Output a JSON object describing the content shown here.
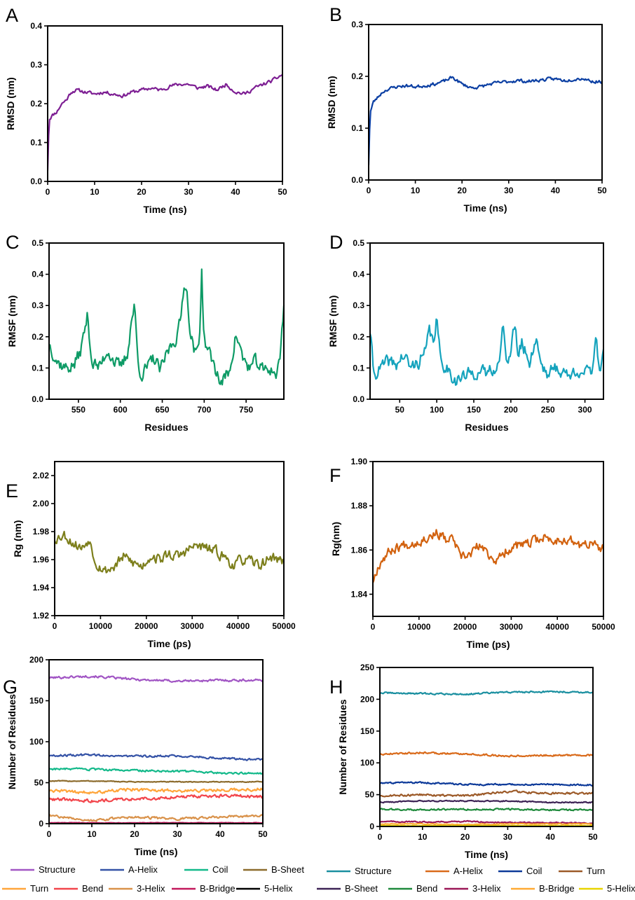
{
  "chart_data": [
    {
      "id": "A",
      "type": "line",
      "panel_label": "A",
      "xlabel": "Time (ns)",
      "ylabel": "RMSD (nm)",
      "xlim": [
        0,
        50
      ],
      "ylim": [
        0,
        0.4
      ],
      "xticks": [
        0,
        10,
        20,
        30,
        40,
        50
      ],
      "yticks": [
        0.0,
        0.1,
        0.2,
        0.3,
        0.4
      ],
      "ytick_labels": [
        "0.0",
        "0.1",
        "0.2",
        "0.3",
        "0.4"
      ],
      "series": [
        {
          "name": "RMSD",
          "color": "#7d1e93",
          "noise": 0.007,
          "seed": 11,
          "x": [
            0,
            0.3,
            1,
            2,
            3,
            4,
            5,
            6,
            8,
            10,
            12,
            14,
            16,
            18,
            20,
            22,
            24,
            26,
            28,
            30,
            32,
            34,
            36,
            38,
            40,
            42,
            44,
            46,
            48,
            50
          ],
          "y": [
            0.03,
            0.16,
            0.17,
            0.18,
            0.2,
            0.21,
            0.23,
            0.235,
            0.23,
            0.225,
            0.23,
            0.225,
            0.22,
            0.23,
            0.235,
            0.24,
            0.235,
            0.245,
            0.25,
            0.25,
            0.24,
            0.245,
            0.235,
            0.25,
            0.23,
            0.225,
            0.24,
            0.25,
            0.26,
            0.275
          ]
        }
      ]
    },
    {
      "id": "B",
      "type": "line",
      "panel_label": "B",
      "xlabel": "Time (ns)",
      "ylabel": "RMSD (nm)",
      "xlim": [
        0,
        50
      ],
      "ylim": [
        0,
        0.3
      ],
      "xticks": [
        0,
        10,
        20,
        30,
        40,
        50
      ],
      "yticks": [
        0.0,
        0.1,
        0.2,
        0.3
      ],
      "ytick_labels": [
        "0.0",
        "0.1",
        "0.2",
        "0.3"
      ],
      "series": [
        {
          "name": "RMSD",
          "color": "#0b3fa3",
          "noise": 0.005,
          "seed": 23,
          "x": [
            0,
            0.3,
            1,
            2,
            3,
            4,
            6,
            8,
            10,
            12,
            14,
            16,
            18,
            20,
            22,
            24,
            26,
            28,
            30,
            32,
            34,
            36,
            38,
            40,
            42,
            44,
            46,
            48,
            50
          ],
          "y": [
            0.03,
            0.13,
            0.15,
            0.16,
            0.17,
            0.175,
            0.18,
            0.182,
            0.18,
            0.182,
            0.185,
            0.19,
            0.198,
            0.185,
            0.178,
            0.18,
            0.185,
            0.188,
            0.19,
            0.192,
            0.19,
            0.192,
            0.194,
            0.195,
            0.192,
            0.195,
            0.196,
            0.19,
            0.19
          ]
        }
      ]
    },
    {
      "id": "C",
      "type": "line",
      "panel_label": "C",
      "xlabel": "Residues",
      "ylabel": "RMSF (nm)",
      "xlim": [
        515,
        795
      ],
      "ylim": [
        0,
        0.5
      ],
      "xticks": [
        550,
        600,
        650,
        700,
        750
      ],
      "yticks": [
        0.0,
        0.1,
        0.2,
        0.3,
        0.4,
        0.5
      ],
      "ytick_labels": [
        "0.0",
        "0.1",
        "0.2",
        "0.3",
        "0.4",
        "0.5"
      ],
      "series": [
        {
          "name": "RMSF",
          "color": "#0e9b66",
          "noise": 0.035,
          "seed": 37,
          "x": [
            515,
            525,
            535,
            545,
            552,
            556,
            561,
            566,
            575,
            585,
            593,
            600,
            608,
            613,
            617,
            621,
            625,
            632,
            640,
            648,
            656,
            662,
            667,
            672,
            676,
            680,
            684,
            690,
            694,
            697,
            700,
            710,
            720,
            730,
            738,
            746,
            754,
            762,
            770,
            778,
            786,
            790,
            795
          ],
          "y": [
            0.18,
            0.12,
            0.1,
            0.11,
            0.15,
            0.2,
            0.27,
            0.12,
            0.1,
            0.16,
            0.12,
            0.1,
            0.14,
            0.25,
            0.3,
            0.12,
            0.08,
            0.1,
            0.13,
            0.09,
            0.15,
            0.18,
            0.2,
            0.25,
            0.38,
            0.33,
            0.2,
            0.14,
            0.18,
            0.41,
            0.19,
            0.12,
            0.05,
            0.09,
            0.21,
            0.13,
            0.1,
            0.12,
            0.09,
            0.1,
            0.08,
            0.12,
            0.3
          ]
        }
      ]
    },
    {
      "id": "D",
      "type": "line",
      "panel_label": "D",
      "xlabel": "Residues",
      "ylabel": "RMSF (nm)",
      "xlim": [
        10,
        325
      ],
      "ylim": [
        0,
        0.5
      ],
      "xticks": [
        50,
        100,
        150,
        200,
        250,
        300
      ],
      "yticks": [
        0.0,
        0.1,
        0.2,
        0.3,
        0.4,
        0.5
      ],
      "ytick_labels": [
        "0.0",
        "0.1",
        "0.2",
        "0.3",
        "0.4",
        "0.5"
      ],
      "series": [
        {
          "name": "RMSF",
          "color": "#15a3bd",
          "noise": 0.035,
          "seed": 41,
          "x": [
            10,
            15,
            25,
            35,
            45,
            55,
            65,
            75,
            85,
            90,
            95,
            100,
            105,
            115,
            125,
            135,
            145,
            155,
            165,
            175,
            185,
            190,
            195,
            200,
            205,
            210,
            215,
            225,
            235,
            240,
            250,
            260,
            270,
            280,
            290,
            300,
            310,
            315,
            320,
            325
          ],
          "y": [
            0.22,
            0.08,
            0.1,
            0.12,
            0.11,
            0.14,
            0.1,
            0.12,
            0.15,
            0.22,
            0.18,
            0.26,
            0.12,
            0.1,
            0.06,
            0.07,
            0.08,
            0.09,
            0.08,
            0.1,
            0.12,
            0.24,
            0.12,
            0.15,
            0.24,
            0.14,
            0.18,
            0.12,
            0.2,
            0.12,
            0.08,
            0.1,
            0.09,
            0.07,
            0.1,
            0.08,
            0.09,
            0.22,
            0.07,
            0.18
          ]
        }
      ]
    },
    {
      "id": "E",
      "type": "line",
      "panel_label": "E",
      "xlabel": "Time (ps)",
      "ylabel": "Rg (nm)",
      "xlim": [
        0,
        50000
      ],
      "ylim": [
        1.92,
        2.03
      ],
      "xticks": [
        0,
        10000,
        20000,
        30000,
        40000,
        50000
      ],
      "yticks": [
        1.92,
        1.94,
        1.96,
        1.98,
        2.0,
        2.02
      ],
      "ytick_labels": [
        "1.92",
        "1.94",
        "1.96",
        "1.98",
        "2.00",
        "2.02"
      ],
      "series": [
        {
          "name": "Rg",
          "color": "#7d7f1c",
          "noise": 0.006,
          "seed": 53,
          "x": [
            0,
            2000,
            4000,
            6000,
            7500,
            9000,
            11000,
            13000,
            15000,
            17000,
            19000,
            21000,
            23000,
            25000,
            27000,
            29000,
            31000,
            33000,
            35000,
            37000,
            39000,
            41000,
            43000,
            45000,
            47000,
            49000,
            50000
          ],
          "y": [
            1.975,
            1.978,
            1.972,
            1.968,
            1.975,
            1.958,
            1.952,
            1.955,
            1.962,
            1.958,
            1.955,
            1.963,
            1.96,
            1.964,
            1.962,
            1.967,
            1.97,
            1.968,
            1.966,
            1.962,
            1.956,
            1.96,
            1.958,
            1.956,
            1.962,
            1.96,
            1.958
          ]
        }
      ]
    },
    {
      "id": "F",
      "type": "line",
      "panel_label": "F",
      "xlabel": "Time (ps)",
      "ylabel": "Rg(nm)",
      "xlim": [
        0,
        50000
      ],
      "ylim": [
        1.83,
        1.9
      ],
      "xticks": [
        0,
        10000,
        20000,
        30000,
        40000,
        50000
      ],
      "yticks": [
        1.84,
        1.86,
        1.88,
        1.9
      ],
      "ytick_labels": [
        "1.84",
        "1.86",
        "1.88",
        "1.90"
      ],
      "series": [
        {
          "name": "Rg",
          "color": "#d2620f",
          "noise": 0.0035,
          "seed": 67,
          "x": [
            0,
            1000,
            2000,
            4000,
            6000,
            8000,
            10000,
            12000,
            14000,
            16000,
            17500,
            19000,
            21000,
            23000,
            25000,
            27000,
            29000,
            31000,
            33000,
            35000,
            37000,
            39000,
            41000,
            43000,
            45000,
            47000,
            49000,
            50000
          ],
          "y": [
            1.846,
            1.852,
            1.856,
            1.86,
            1.862,
            1.863,
            1.864,
            1.866,
            1.868,
            1.864,
            1.865,
            1.856,
            1.858,
            1.862,
            1.858,
            1.855,
            1.86,
            1.862,
            1.862,
            1.864,
            1.866,
            1.864,
            1.865,
            1.864,
            1.862,
            1.863,
            1.861,
            1.86
          ]
        }
      ]
    },
    {
      "id": "G",
      "type": "line",
      "panel_label": "G",
      "xlabel": "Time (ns)",
      "ylabel": "Number of Residues",
      "xlim": [
        0,
        50
      ],
      "ylim": [
        0,
        200
      ],
      "xticks": [
        0,
        10,
        20,
        30,
        40,
        50
      ],
      "yticks": [
        0,
        50,
        100,
        150,
        200
      ],
      "ytick_labels": [
        "0",
        "50",
        "100",
        "150",
        "200"
      ],
      "legend": {
        "placement": "bottom"
      },
      "series": [
        {
          "name": "Structure",
          "color": "#a155c4",
          "noise": 2.2,
          "seed": 101,
          "x": [
            0,
            10,
            20,
            30,
            40,
            50
          ],
          "y": [
            178,
            180,
            176,
            174,
            175,
            175
          ]
        },
        {
          "name": "A-Helix",
          "color": "#3452a6",
          "noise": 2.0,
          "seed": 102,
          "x": [
            0,
            10,
            20,
            30,
            40,
            50
          ],
          "y": [
            83,
            84,
            82,
            83,
            80,
            78
          ]
        },
        {
          "name": "Coil",
          "color": "#13b98a",
          "noise": 2.0,
          "seed": 103,
          "x": [
            0,
            10,
            20,
            30,
            40,
            50
          ],
          "y": [
            67,
            66,
            65,
            64,
            62,
            61
          ]
        },
        {
          "name": "B-Sheet",
          "color": "#8c6b2c",
          "noise": 0.8,
          "seed": 104,
          "x": [
            0,
            10,
            20,
            30,
            40,
            50
          ],
          "y": [
            52,
            52,
            51,
            51,
            51,
            51
          ]
        },
        {
          "name": "Turn",
          "color": "#ffa53a",
          "noise": 3.0,
          "seed": 105,
          "x": [
            0,
            10,
            20,
            30,
            40,
            50
          ],
          "y": [
            40,
            38,
            42,
            40,
            41,
            42
          ]
        },
        {
          "name": "Bend",
          "color": "#f2454b",
          "noise": 3.0,
          "seed": 106,
          "x": [
            0,
            10,
            20,
            30,
            40,
            50
          ],
          "y": [
            30,
            28,
            30,
            33,
            34,
            33
          ]
        },
        {
          "name": "3-Helix",
          "color": "#d9924a",
          "noise": 2.2,
          "seed": 107,
          "x": [
            0,
            10,
            20,
            30,
            40,
            50
          ],
          "y": [
            10,
            4,
            8,
            6,
            8,
            10
          ]
        },
        {
          "name": "B-Bridge",
          "color": "#c2185b",
          "noise": 0.4,
          "seed": 108,
          "x": [
            0,
            10,
            20,
            30,
            40,
            50
          ],
          "y": [
            1,
            1,
            1,
            1,
            1,
            1
          ]
        },
        {
          "name": "5-Helix",
          "color": "#000000",
          "noise": 0.3,
          "seed": 109,
          "x": [
            0,
            10,
            20,
            30,
            40,
            50
          ],
          "y": [
            0,
            0,
            0,
            0,
            0,
            0
          ]
        }
      ]
    },
    {
      "id": "H",
      "type": "line",
      "panel_label": "H",
      "xlabel": "Time (ns)",
      "ylabel": "Number of Residues",
      "xlim": [
        0,
        50
      ],
      "ylim": [
        0,
        250
      ],
      "xticks": [
        0,
        10,
        20,
        30,
        40,
        50
      ],
      "yticks": [
        0,
        50,
        100,
        150,
        200,
        250
      ],
      "ytick_labels": [
        "0",
        "50",
        "100",
        "150",
        "200",
        "250"
      ],
      "legend": {
        "placement": "bottom"
      },
      "series": [
        {
          "name": "Structure",
          "color": "#1a8fa0",
          "noise": 2.0,
          "seed": 201,
          "x": [
            0,
            10,
            20,
            30,
            40,
            50
          ],
          "y": [
            210,
            209,
            208,
            211,
            212,
            211
          ]
        },
        {
          "name": "A-Helix",
          "color": "#d96a1a",
          "noise": 2.2,
          "seed": 202,
          "x": [
            0,
            10,
            20,
            30,
            40,
            50
          ],
          "y": [
            114,
            116,
            114,
            111,
            112,
            112
          ]
        },
        {
          "name": "Coil",
          "color": "#0d3a99",
          "noise": 2.0,
          "seed": 203,
          "x": [
            0,
            10,
            20,
            30,
            40,
            50
          ],
          "y": [
            68,
            69,
            66,
            66,
            66,
            65
          ]
        },
        {
          "name": "Turn",
          "color": "#9c5a28",
          "noise": 2.6,
          "seed": 204,
          "x": [
            0,
            10,
            20,
            30,
            40,
            50
          ],
          "y": [
            48,
            50,
            48,
            55,
            52,
            52
          ]
        },
        {
          "name": "B-Sheet",
          "color": "#3d2355",
          "noise": 1.4,
          "seed": 205,
          "x": [
            0,
            10,
            20,
            30,
            40,
            50
          ],
          "y": [
            38,
            40,
            40,
            40,
            38,
            38
          ]
        },
        {
          "name": "Bend",
          "color": "#1f8a3c",
          "noise": 2.0,
          "seed": 206,
          "x": [
            0,
            10,
            20,
            30,
            40,
            50
          ],
          "y": [
            27,
            26,
            27,
            27,
            26,
            26
          ]
        },
        {
          "name": "3-Helix",
          "color": "#9b1757",
          "noise": 1.5,
          "seed": 207,
          "x": [
            0,
            10,
            20,
            30,
            40,
            50
          ],
          "y": [
            8,
            7,
            8,
            6,
            6,
            5
          ]
        },
        {
          "name": "B-Bridge",
          "color": "#ffaa33",
          "noise": 1.0,
          "seed": 208,
          "x": [
            0,
            10,
            20,
            30,
            40,
            50
          ],
          "y": [
            4,
            4,
            3,
            4,
            4,
            4
          ]
        },
        {
          "name": "5-Helix",
          "color": "#e8d400",
          "noise": 0.4,
          "seed": 209,
          "x": [
            0,
            10,
            20,
            30,
            40,
            50
          ],
          "y": [
            1,
            1,
            1,
            1,
            1,
            1
          ]
        }
      ]
    }
  ]
}
